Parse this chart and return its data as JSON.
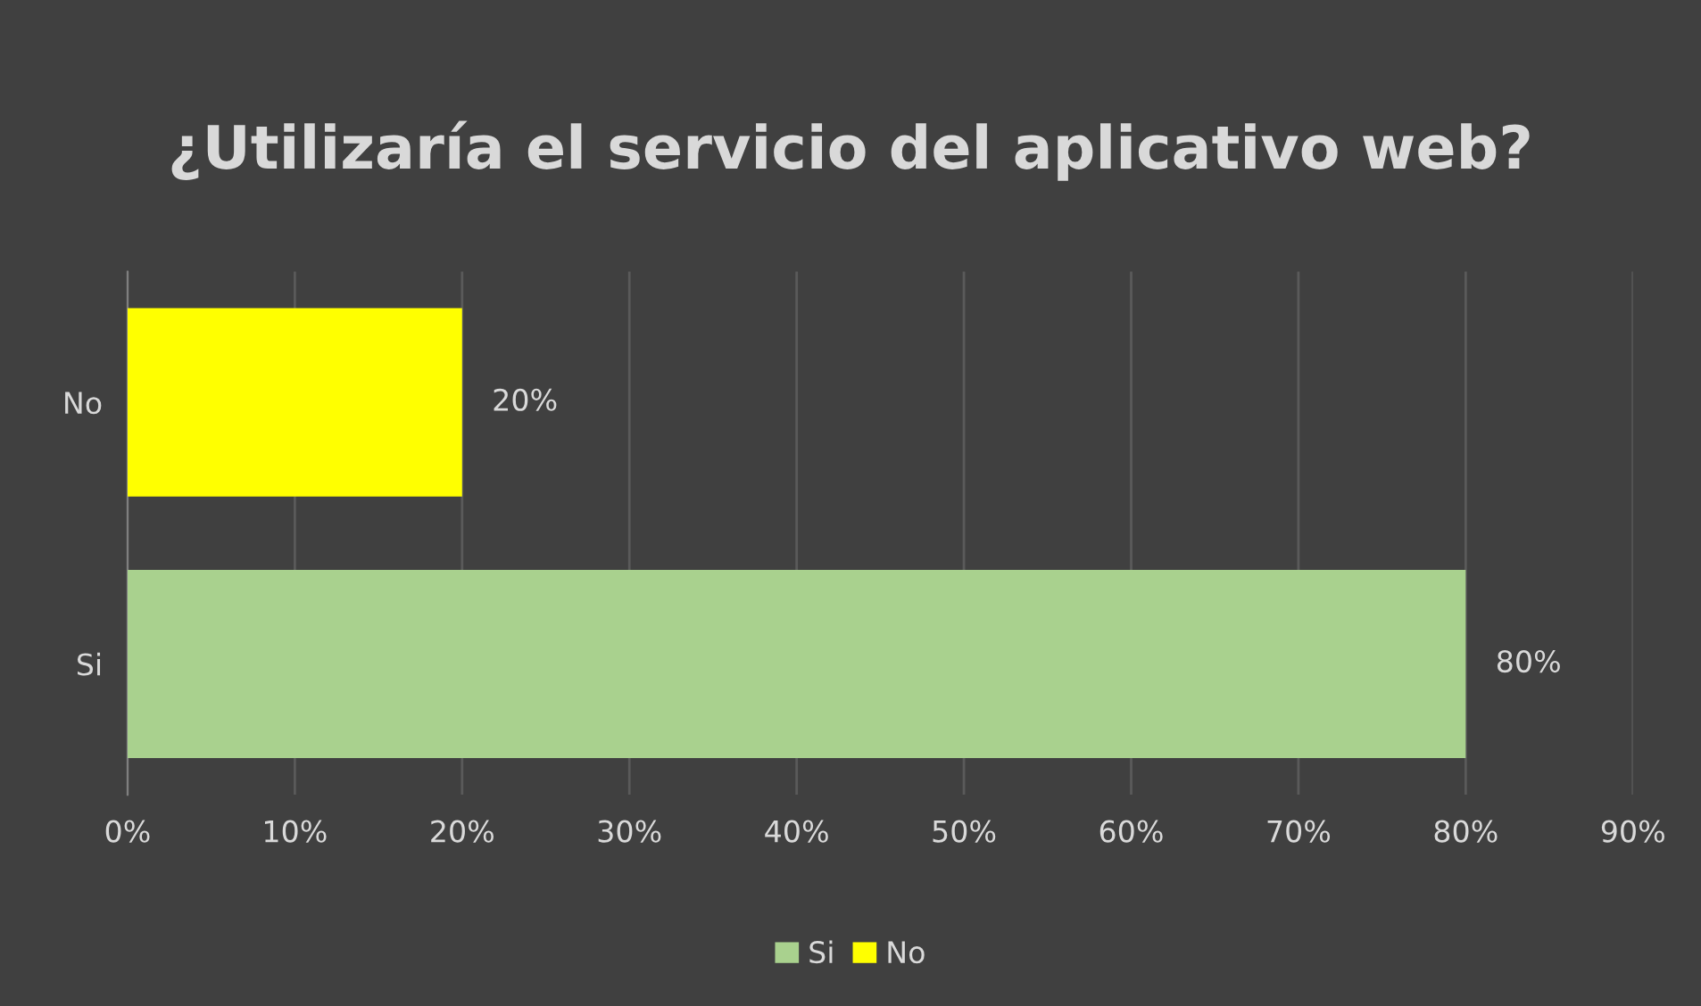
{
  "chart_data": {
    "type": "bar",
    "orientation": "horizontal",
    "title": "¿Utilizaría el servicio del aplicativo web?",
    "categories": [
      "No",
      "Si"
    ],
    "series": [
      {
        "name": "Si",
        "color": "#a9d18e",
        "values": [
          null,
          80
        ],
        "value_labels": [
          null,
          "80%"
        ]
      },
      {
        "name": "No",
        "color": "#ffff00",
        "values": [
          20,
          null
        ],
        "value_labels": [
          "20%",
          null
        ]
      }
    ],
    "xlim": [
      0,
      90
    ],
    "xticks": [
      {
        "value": 0,
        "label": "0%"
      },
      {
        "value": 10,
        "label": "10%"
      },
      {
        "value": 20,
        "label": "20%"
      },
      {
        "value": 30,
        "label": "30%"
      },
      {
        "value": 40,
        "label": "40%"
      },
      {
        "value": 50,
        "label": "50%"
      },
      {
        "value": 60,
        "label": "60%"
      },
      {
        "value": 70,
        "label": "70%"
      },
      {
        "value": 80,
        "label": "80%"
      },
      {
        "value": 90,
        "label": "90%"
      }
    ],
    "grid": "x",
    "legend": "bottom"
  }
}
